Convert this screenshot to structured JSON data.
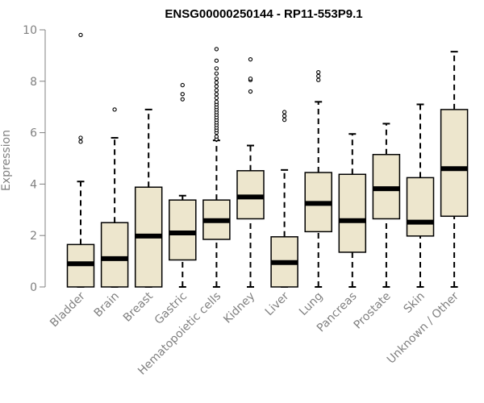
{
  "chart_data": {
    "type": "boxplot",
    "title": "ENSG00000250144 - RP11-553P9.1",
    "xlabel": "",
    "ylabel": "Expression",
    "ylim": [
      0,
      10
    ],
    "yticks": [
      "0",
      "2",
      "4",
      "6",
      "8",
      "10"
    ],
    "grid": false,
    "legend": "none",
    "colors": {
      "box_fill": "#ede6cd",
      "stroke": "#000000",
      "axis": "#808080"
    },
    "categories": [
      "Bladder",
      "Brain",
      "Breast",
      "Gastric",
      "Hematopoietic cells",
      "Kidney",
      "Liver",
      "Lung",
      "Pancreas",
      "Prostate",
      "Skin",
      "Unknown / Other"
    ],
    "boxes": [
      {
        "category": "Bladder",
        "min": 0,
        "q1": 0,
        "median": 0.9,
        "q3": 1.65,
        "max": 4.1,
        "outliers": [
          5.65,
          5.8,
          9.8
        ]
      },
      {
        "category": "Brain",
        "min": 0,
        "q1": 0,
        "median": 1.1,
        "q3": 2.5,
        "max": 5.8,
        "outliers": [
          6.9
        ]
      },
      {
        "category": "Breast",
        "min": 0,
        "q1": 0,
        "median": 1.98,
        "q3": 3.88,
        "max": 6.9,
        "outliers": []
      },
      {
        "category": "Gastric",
        "min": 0,
        "q1": 1.05,
        "median": 2.1,
        "q3": 3.38,
        "max": 3.55,
        "outliers": [
          7.3,
          7.5,
          7.85
        ]
      },
      {
        "category": "Hematopoietic cells",
        "min": 0,
        "q1": 1.85,
        "median": 2.58,
        "q3": 3.38,
        "max": 5.7,
        "outliers": [
          5.75,
          5.85,
          6.0,
          6.1,
          6.2,
          6.3,
          6.4,
          6.5,
          6.6,
          6.7,
          6.8,
          6.9,
          7.0,
          7.1,
          7.2,
          7.35,
          7.5,
          7.65,
          7.8,
          7.95,
          8.1,
          8.3,
          8.5,
          8.8,
          9.25
        ]
      },
      {
        "category": "Kidney",
        "min": 0,
        "q1": 2.65,
        "median": 3.5,
        "q3": 4.52,
        "max": 5.5,
        "outliers": [
          7.6,
          8.05,
          8.1,
          8.85
        ]
      },
      {
        "category": "Liver",
        "min": 0,
        "q1": 0,
        "median": 0.95,
        "q3": 1.95,
        "max": 4.55,
        "outliers": [
          6.5,
          6.65,
          6.8
        ]
      },
      {
        "category": "Lung",
        "min": 0,
        "q1": 2.15,
        "median": 3.25,
        "q3": 4.45,
        "max": 7.2,
        "outliers": [
          8.05,
          8.2,
          8.35
        ]
      },
      {
        "category": "Pancreas",
        "min": 0,
        "q1": 1.35,
        "median": 2.58,
        "q3": 4.38,
        "max": 5.95,
        "outliers": []
      },
      {
        "category": "Prostate",
        "min": 0,
        "q1": 2.65,
        "median": 3.82,
        "q3": 5.15,
        "max": 6.35,
        "outliers": []
      },
      {
        "category": "Skin",
        "min": 0,
        "q1": 1.98,
        "median": 2.52,
        "q3": 4.25,
        "max": 7.1,
        "outliers": []
      },
      {
        "category": "Unknown / Other",
        "min": 0,
        "q1": 2.75,
        "median": 4.6,
        "q3": 6.9,
        "max": 9.15,
        "outliers": []
      }
    ]
  }
}
